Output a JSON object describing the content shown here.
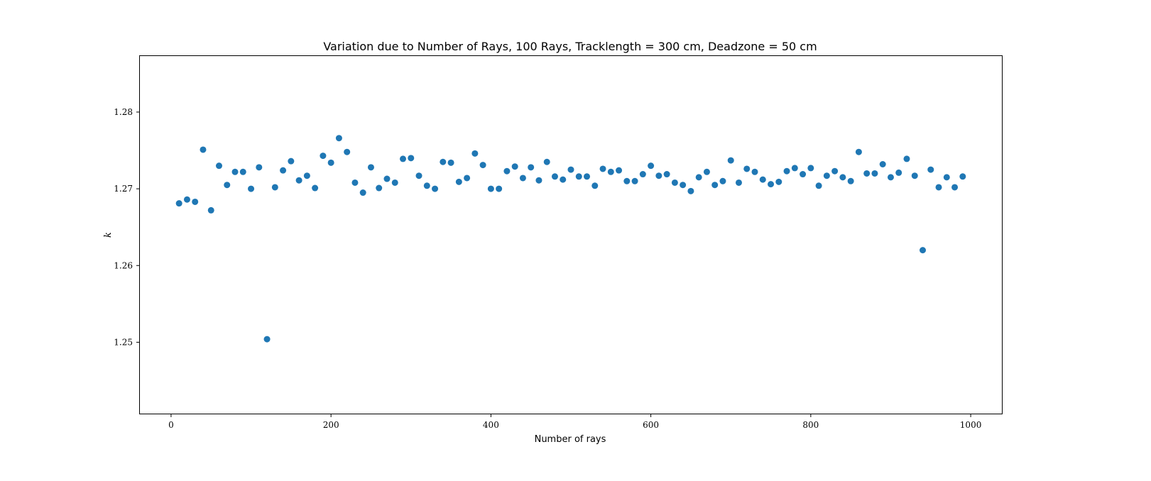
{
  "chart_data": {
    "type": "scatter",
    "title": "Variation due to Number of Rays, 100 Rays, Tracklength = 300 cm, Deadzone = 50 cm",
    "xlabel": "Number of rays",
    "ylabel": "k",
    "xlim": [
      -39,
      1039
    ],
    "ylim": [
      1.2407,
      1.2873
    ],
    "xticks": [
      0,
      200,
      400,
      600,
      800,
      1000
    ],
    "xtick_labels": [
      "0",
      "200",
      "400",
      "600",
      "800",
      "1000"
    ],
    "yticks": [
      1.25,
      1.26,
      1.27,
      1.28
    ],
    "ytick_labels": [
      "1.25",
      "1.26",
      "1.27",
      "1.28"
    ],
    "grid": false,
    "marker_color": "#1f77b4",
    "series": [
      {
        "x": [
          10,
          20,
          30,
          40,
          50,
          60,
          70,
          80,
          90,
          100,
          110,
          120,
          130,
          140,
          150,
          160,
          170,
          180,
          190,
          200,
          210,
          220,
          230,
          240,
          250,
          260,
          270,
          280,
          290,
          300,
          310,
          320,
          330,
          340,
          350,
          360,
          370,
          380,
          390,
          400,
          410,
          420,
          430,
          440,
          450,
          460,
          470,
          480,
          490,
          500,
          510,
          520,
          530,
          540,
          550,
          560,
          570,
          580,
          590,
          600,
          610,
          620,
          630,
          640,
          650,
          660,
          670,
          680,
          690,
          700,
          710,
          720,
          730,
          740,
          750,
          760,
          770,
          780,
          790,
          800,
          810,
          820,
          830,
          840,
          850,
          860,
          870,
          880,
          890,
          900,
          910,
          920,
          930,
          940,
          950,
          960,
          970,
          980,
          990
        ],
        "y": [
          1.2681,
          1.2686,
          1.2683,
          1.2751,
          1.2672,
          1.273,
          1.2705,
          1.2722,
          1.2722,
          1.27,
          1.2728,
          1.2504,
          1.2702,
          1.2724,
          1.2736,
          1.2711,
          1.2717,
          1.2701,
          1.2743,
          1.2734,
          1.2766,
          1.2748,
          1.2708,
          1.2695,
          1.2728,
          1.2701,
          1.2713,
          1.2708,
          1.2739,
          1.274,
          1.2717,
          1.2704,
          1.27,
          1.2735,
          1.2734,
          1.2709,
          1.2714,
          1.2746,
          1.2731,
          1.27,
          1.27,
          1.2723,
          1.2729,
          1.2714,
          1.2728,
          1.2711,
          1.2735,
          1.2716,
          1.2712,
          1.2725,
          1.2716,
          1.2716,
          1.2704,
          1.2726,
          1.2722,
          1.2724,
          1.271,
          1.271,
          1.2719,
          1.273,
          1.2717,
          1.2719,
          1.2708,
          1.2705,
          1.2697,
          1.2715,
          1.2722,
          1.2705,
          1.271,
          1.2737,
          1.2708,
          1.2726,
          1.2722,
          1.2712,
          1.2706,
          1.2709,
          1.2723,
          1.2727,
          1.2719,
          1.2727,
          1.2704,
          1.2717,
          1.2723,
          1.2715,
          1.271,
          1.2748,
          1.272,
          1.272,
          1.2732,
          1.2715,
          1.2721,
          1.2739,
          1.2717,
          1.262,
          1.2725,
          1.2702,
          1.2715,
          1.2702,
          1.2716
        ]
      }
    ]
  }
}
